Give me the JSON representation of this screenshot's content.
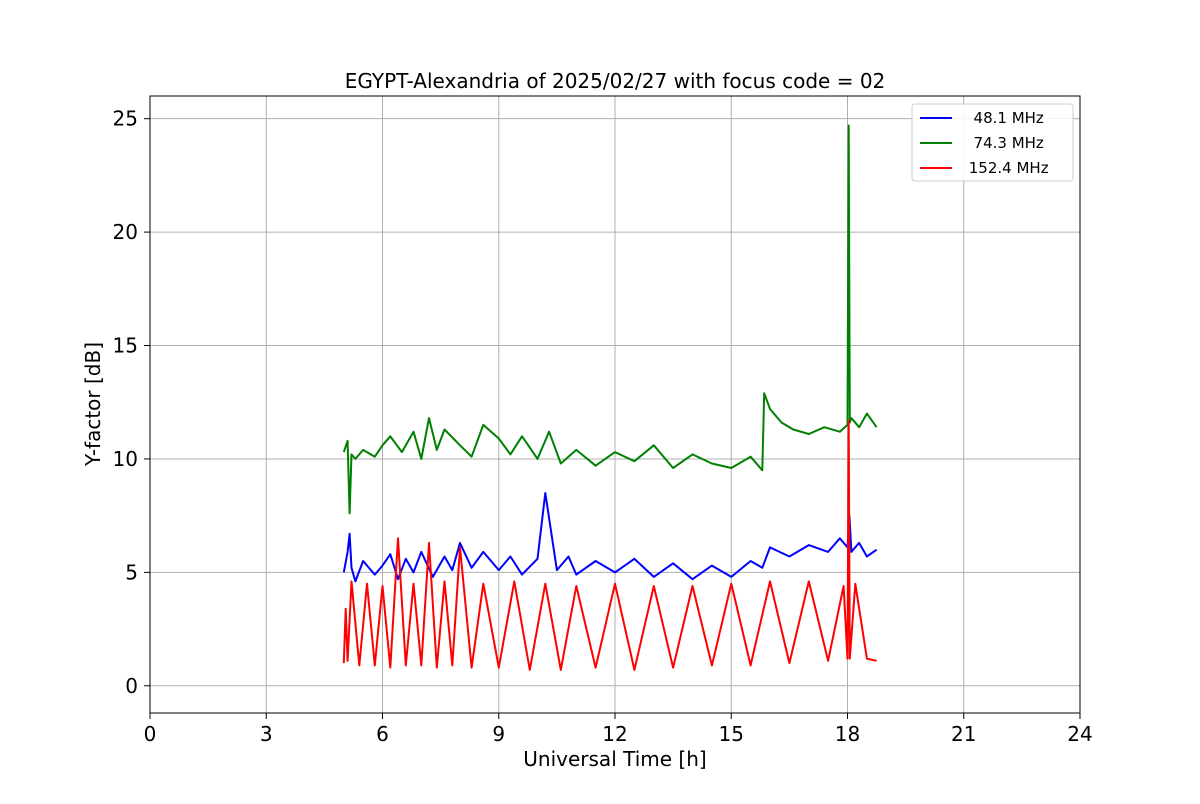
{
  "chart_data": {
    "type": "line",
    "title": "EGYPT-Alexandria of 2025/02/27 with focus code = 02",
    "xlabel": "Universal Time [h]",
    "ylabel": "Y-factor [dB]",
    "xlim": [
      0,
      24
    ],
    "ylim": [
      -1.2,
      26
    ],
    "xticks": [
      0,
      3,
      6,
      9,
      12,
      15,
      18,
      21,
      24
    ],
    "yticks": [
      0,
      5,
      10,
      15,
      20,
      25
    ],
    "grid": true,
    "legend_position": "top-right",
    "series": [
      {
        "name": "  48.1 MHz",
        "color": "#0000ff",
        "x": [
          5.0,
          5.1,
          5.15,
          5.2,
          5.3,
          5.5,
          5.8,
          6.0,
          6.2,
          6.4,
          6.6,
          6.8,
          7.0,
          7.3,
          7.6,
          7.8,
          8.0,
          8.3,
          8.6,
          9.0,
          9.3,
          9.6,
          10.0,
          10.2,
          10.5,
          10.8,
          11.0,
          11.5,
          12.0,
          12.5,
          13.0,
          13.5,
          14.0,
          14.5,
          15.0,
          15.5,
          15.8,
          16.0,
          16.5,
          17.0,
          17.5,
          17.8,
          18.0,
          18.05,
          18.1,
          18.3,
          18.5,
          18.75
        ],
        "values": [
          5.0,
          5.9,
          6.7,
          5.2,
          4.6,
          5.5,
          4.9,
          5.3,
          5.8,
          4.7,
          5.6,
          5.0,
          5.9,
          4.8,
          5.7,
          5.1,
          6.3,
          5.2,
          5.9,
          5.1,
          5.7,
          4.9,
          5.6,
          8.5,
          5.1,
          5.7,
          4.9,
          5.5,
          5.0,
          5.6,
          4.8,
          5.4,
          4.7,
          5.3,
          4.8,
          5.5,
          5.2,
          6.1,
          5.7,
          6.2,
          5.9,
          6.5,
          6.1,
          7.5,
          5.9,
          6.3,
          5.7,
          6.0
        ]
      },
      {
        "name": "  74.3 MHz",
        "color": "#008000",
        "x": [
          5.0,
          5.1,
          5.15,
          5.2,
          5.3,
          5.5,
          5.8,
          6.0,
          6.2,
          6.5,
          6.8,
          7.0,
          7.2,
          7.4,
          7.6,
          8.0,
          8.3,
          8.6,
          9.0,
          9.3,
          9.6,
          9.8,
          10.0,
          10.3,
          10.6,
          11.0,
          11.5,
          12.0,
          12.5,
          13.0,
          13.5,
          14.0,
          14.5,
          15.0,
          15.5,
          15.8,
          15.85,
          16.0,
          16.3,
          16.6,
          17.0,
          17.4,
          17.8,
          18.0,
          18.03,
          18.06,
          18.1,
          18.3,
          18.5,
          18.75
        ],
        "values": [
          10.3,
          10.8,
          7.6,
          10.2,
          10.0,
          10.4,
          10.1,
          10.6,
          11.0,
          10.3,
          11.2,
          10.0,
          11.8,
          10.4,
          11.3,
          10.6,
          10.1,
          11.5,
          10.9,
          10.2,
          11.0,
          10.5,
          10.0,
          11.2,
          9.8,
          10.4,
          9.7,
          10.3,
          9.9,
          10.6,
          9.6,
          10.2,
          9.8,
          9.6,
          10.1,
          9.5,
          12.9,
          12.2,
          11.6,
          11.3,
          11.1,
          11.4,
          11.2,
          11.5,
          24.7,
          11.6,
          11.8,
          11.4,
          12.0,
          11.4
        ]
      },
      {
        "name": " 152.4 MHz",
        "color": "#ff0000",
        "x": [
          5.0,
          5.05,
          5.1,
          5.2,
          5.4,
          5.6,
          5.8,
          6.0,
          6.2,
          6.4,
          6.6,
          6.8,
          7.0,
          7.2,
          7.4,
          7.6,
          7.8,
          8.0,
          8.3,
          8.6,
          9.0,
          9.4,
          9.8,
          10.2,
          10.6,
          11.0,
          11.5,
          12.0,
          12.5,
          13.0,
          13.5,
          14.0,
          14.5,
          15.0,
          15.5,
          16.0,
          16.5,
          17.0,
          17.5,
          17.9,
          18.0,
          18.03,
          18.06,
          18.2,
          18.5,
          18.75
        ],
        "values": [
          1.0,
          3.4,
          1.1,
          4.6,
          0.9,
          4.5,
          0.9,
          4.4,
          0.8,
          6.5,
          0.9,
          4.5,
          0.9,
          6.3,
          0.8,
          4.6,
          0.9,
          6.1,
          0.8,
          4.5,
          0.8,
          4.6,
          0.7,
          4.5,
          0.7,
          4.4,
          0.8,
          4.5,
          0.7,
          4.4,
          0.8,
          4.4,
          0.9,
          4.5,
          0.9,
          4.6,
          1.0,
          4.6,
          1.1,
          4.4,
          1.2,
          11.7,
          1.2,
          4.5,
          1.2,
          1.1
        ]
      }
    ]
  }
}
